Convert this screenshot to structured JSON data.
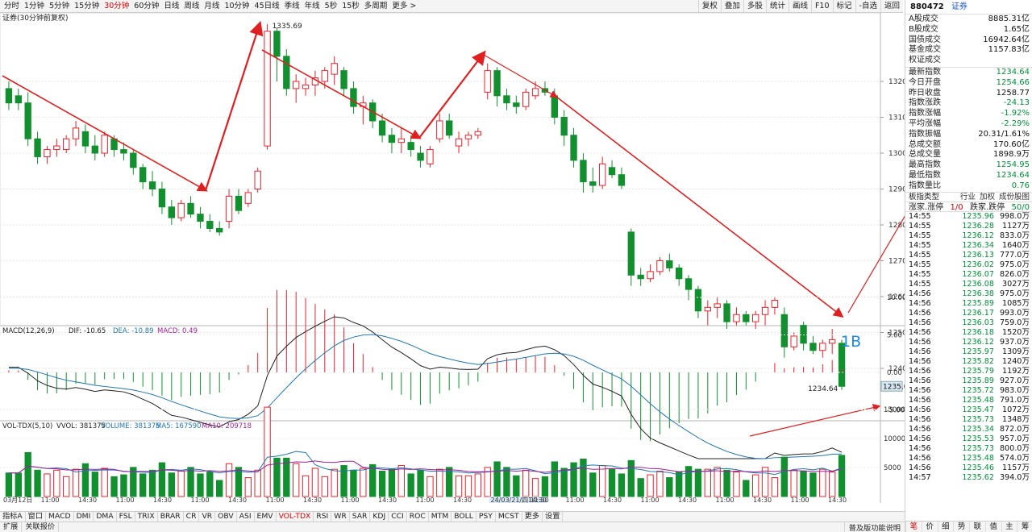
{
  "toolbar": {
    "periods": [
      "分时",
      "1分钟",
      "5分钟",
      "15分钟",
      "30分钟",
      "60分钟",
      "日线",
      "周线",
      "月线",
      "10分钟",
      "45日线",
      "季线",
      "年线",
      "5秒",
      "15秒",
      "多周期",
      "更多 >"
    ],
    "active_period": "30分钟",
    "actions": [
      "复权",
      "叠加",
      "多股",
      "统计",
      "画线",
      "F10",
      "标记",
      "-自选",
      "返回"
    ]
  },
  "main_chart": {
    "title": "证券(30分钟前复权)",
    "high_label": "1335.69",
    "low_label": "1234.64",
    "current_price_tag": "1235.0",
    "y_ticks": [
      "1320",
      "1310",
      "1300",
      "1290",
      "1280",
      "1270",
      "1260",
      "1250",
      "1240"
    ],
    "annotation": "1B",
    "colors": {
      "up": "#e8232b",
      "down": "#12902f",
      "arrow": "#e02020",
      "label": "#1a8cd8"
    }
  },
  "chart_data": {
    "type": "candlestick",
    "title": "证券(30分钟前复权)",
    "y_ticks": [
      1240,
      1250,
      1260,
      1270,
      1280,
      1290,
      1300,
      1310,
      1320
    ],
    "ohlc": [
      [
        1318,
        1320,
        1312,
        1314
      ],
      [
        1316,
        1318,
        1312,
        1314
      ],
      [
        1314,
        1317,
        1302,
        1304
      ],
      [
        1304,
        1306,
        1297,
        1299
      ],
      [
        1299,
        1302,
        1297,
        1301
      ],
      [
        1301,
        1304,
        1299,
        1302
      ],
      [
        1301,
        1305,
        1300,
        1304
      ],
      [
        1304,
        1309,
        1302,
        1307
      ],
      [
        1306,
        1308,
        1300,
        1302
      ],
      [
        1302,
        1305,
        1298,
        1300
      ],
      [
        1300,
        1306,
        1299,
        1305
      ],
      [
        1304,
        1305,
        1299,
        1301
      ],
      [
        1301,
        1303,
        1298,
        1300
      ],
      [
        1300,
        1301,
        1294,
        1296
      ],
      [
        1296,
        1297,
        1290,
        1292
      ],
      [
        1292,
        1295,
        1288,
        1290
      ],
      [
        1290,
        1292,
        1283,
        1285
      ],
      [
        1285,
        1287,
        1280,
        1282
      ],
      [
        1282,
        1287,
        1281,
        1286
      ],
      [
        1286,
        1288,
        1282,
        1283
      ],
      [
        1283,
        1285,
        1279,
        1281
      ],
      [
        1281,
        1283,
        1278,
        1279
      ],
      [
        1279,
        1281,
        1277,
        1278
      ],
      [
        1281,
        1290,
        1279,
        1288
      ],
      [
        1288,
        1290,
        1283,
        1284
      ],
      [
        1286,
        1290,
        1285,
        1289
      ],
      [
        1290,
        1296,
        1289,
        1295
      ],
      [
        1302,
        1336,
        1301,
        1334
      ],
      [
        1334,
        1335,
        1320,
        1327
      ],
      [
        1327,
        1329,
        1316,
        1318
      ],
      [
        1318,
        1322,
        1314,
        1320
      ],
      [
        1318,
        1321,
        1316,
        1319
      ],
      [
        1319,
        1323,
        1316,
        1321
      ],
      [
        1320,
        1324,
        1318,
        1323
      ],
      [
        1322,
        1327,
        1319,
        1325
      ],
      [
        1323,
        1324,
        1316,
        1318
      ],
      [
        1318,
        1320,
        1311,
        1313
      ],
      [
        1313,
        1316,
        1308,
        1314
      ],
      [
        1314,
        1315,
        1307,
        1309
      ],
      [
        1309,
        1311,
        1303,
        1305
      ],
      [
        1305,
        1307,
        1300,
        1303
      ],
      [
        1303,
        1307,
        1300,
        1304
      ],
      [
        1303,
        1305,
        1299,
        1301
      ],
      [
        1300,
        1302,
        1296,
        1298
      ],
      [
        1297,
        1302,
        1296,
        1301
      ],
      [
        1304,
        1311,
        1303,
        1309
      ],
      [
        1309,
        1311,
        1304,
        1305
      ],
      [
        1302,
        1306,
        1300,
        1304
      ],
      [
        1304,
        1306,
        1302,
        1305
      ],
      [
        1305,
        1307,
        1304,
        1306
      ],
      [
        1317,
        1325,
        1315,
        1323
      ],
      [
        1323,
        1324,
        1313,
        1316
      ],
      [
        1316,
        1318,
        1312,
        1314
      ],
      [
        1314,
        1316,
        1311,
        1313
      ],
      [
        1313,
        1318,
        1312,
        1317
      ],
      [
        1316,
        1320,
        1315,
        1318
      ],
      [
        1318,
        1320,
        1316,
        1317
      ],
      [
        1316,
        1318,
        1308,
        1310
      ],
      [
        1310,
        1312,
        1302,
        1305
      ],
      [
        1305,
        1307,
        1296,
        1298
      ],
      [
        1298,
        1300,
        1289,
        1292
      ],
      [
        1292,
        1296,
        1289,
        1291
      ],
      [
        1291,
        1299,
        1290,
        1297
      ],
      [
        1296,
        1298,
        1293,
        1294
      ],
      [
        1294,
        1296,
        1290,
        1291
      ],
      [
        1278,
        1279,
        1263,
        1266
      ],
      [
        1266,
        1268,
        1263,
        1265
      ],
      [
        1265,
        1269,
        1264,
        1267
      ],
      [
        1267,
        1271,
        1266,
        1270
      ],
      [
        1270,
        1272,
        1267,
        1268
      ],
      [
        1268,
        1269,
        1263,
        1265
      ],
      [
        1265,
        1266,
        1259,
        1262
      ],
      [
        1262,
        1263,
        1254,
        1256
      ],
      [
        1256,
        1259,
        1252,
        1257
      ],
      [
        1257,
        1260,
        1254,
        1258
      ],
      [
        1258,
        1259,
        1251,
        1253
      ],
      [
        1253,
        1257,
        1252,
        1255
      ],
      [
        1255,
        1256,
        1252,
        1253
      ],
      [
        1253,
        1256,
        1251,
        1255
      ],
      [
        1255,
        1259,
        1252,
        1257
      ],
      [
        1257,
        1260,
        1255,
        1259
      ],
      [
        1255,
        1257,
        1243,
        1246
      ],
      [
        1246,
        1250,
        1245,
        1249
      ],
      [
        1252,
        1253,
        1245,
        1247
      ],
      [
        1247,
        1249,
        1244,
        1245
      ],
      [
        1245,
        1248,
        1243,
        1247
      ],
      [
        1247,
        1251,
        1244,
        1248
      ],
      [
        1247,
        1248,
        1234,
        1235
      ]
    ],
    "macd": {
      "name": "MACD(12,26,9)",
      "dif": -10.65,
      "dea": -10.89,
      "macd": 0.49,
      "y_ticks": [
        10.0,
        5.0,
        0.0,
        -5.0
      ]
    },
    "vol": {
      "name": "VOL-TDX(5,10)",
      "vvol": 381375,
      "volume": 381375,
      "ma5": 167590,
      "ma10": 209718,
      "y_ticks": [
        15000,
        10000,
        5000
      ]
    },
    "x_labels": [
      "03月12日",
      "11:00",
      "14:30",
      "11:00",
      "14:30",
      "11:00",
      "14:30",
      "11:00",
      "14:30",
      "11:00",
      "14:30",
      "11:00",
      "14:30",
      "24/03/21/四 11:30",
      "14:30",
      "11:00",
      "14:30",
      "11:00",
      "14:30",
      "11:00",
      "14:30",
      "11:00",
      "14:30"
    ]
  },
  "macd_header": {
    "name": "MACD(12,26,9)",
    "dif_label": "DIF: -10.65",
    "dea_label": "DEA: -10.89",
    "macd_label": "MACD: 0.49"
  },
  "vol_header": {
    "name": "VOL-TDX(5,10)",
    "vvol_label": "VVOL: 381375",
    "volume_label": "VOLUME: 381375",
    "ma5_label": "MA5: 167590",
    "ma10_label": "MA10: 209718"
  },
  "right_panel": {
    "code": "880472",
    "name": "证券",
    "summary": [
      {
        "k": "A股成交",
        "v": "8885.31亿",
        "g": false
      },
      {
        "k": "B股成交",
        "v": "1.65亿",
        "g": false
      },
      {
        "k": "国债成交",
        "v": "16942.64亿",
        "g": false
      },
      {
        "k": "基金成交",
        "v": "1157.83亿",
        "g": false
      },
      {
        "k": "权证成交",
        "v": "",
        "g": false
      }
    ],
    "stats": [
      {
        "k": "最新指数",
        "v": "1234.64",
        "g": true
      },
      {
        "k": "今日开盘",
        "v": "1254.66",
        "g": true
      },
      {
        "k": "昨日收盘",
        "v": "1258.77",
        "g": false
      },
      {
        "k": "指数涨跌",
        "v": "-24.13",
        "g": true
      },
      {
        "k": "指数涨幅",
        "v": "-1.92%",
        "g": true
      },
      {
        "k": "平均涨幅",
        "v": "-2.29%",
        "g": true
      },
      {
        "k": "指数振幅",
        "v": "20.31/1.61%",
        "g": false
      },
      {
        "k": "总成交额",
        "v": "170.60亿",
        "g": false
      },
      {
        "k": "总成交量",
        "v": "1898.9万",
        "g": false
      },
      {
        "k": "最高指数",
        "v": "1254.95",
        "g": true
      },
      {
        "k": "最低指数",
        "v": "1234.64",
        "g": true
      },
      {
        "k": "指数量比",
        "v": "0.76",
        "g": true
      }
    ],
    "index_type": {
      "label": "板指类型",
      "tabs": [
        "行业",
        "加权",
        "成份股图"
      ]
    },
    "up_down": {
      "up_label": "涨家.涨停",
      "up_value": "1/0",
      "down_label": "跌家.跌停",
      "down_value": "50/0"
    },
    "ticks": [
      [
        "14:55",
        "1235.96",
        "998.0万"
      ],
      [
        "14:55",
        "1236.28",
        "1127万"
      ],
      [
        "14:55",
        "1236.12",
        "833.0万"
      ],
      [
        "14:55",
        "1236.34",
        "1640万"
      ],
      [
        "14:55",
        "1236.13",
        "777.0万"
      ],
      [
        "14:55",
        "1236.02",
        "975.0万"
      ],
      [
        "14:55",
        "1236.07",
        "826.0万"
      ],
      [
        "14:55",
        "1236.08",
        "3027万"
      ],
      [
        "14:56",
        "1236.38",
        "975.0万"
      ],
      [
        "14:56",
        "1235.89",
        "1085万"
      ],
      [
        "14:56",
        "1236.17",
        "993.0万"
      ],
      [
        "14:56",
        "1236.03",
        "759.0万"
      ],
      [
        "14:56",
        "1236.18",
        "1520万"
      ],
      [
        "14:56",
        "1236.12",
        "937.0万"
      ],
      [
        "14:56",
        "1235.97",
        "1309万"
      ],
      [
        "14:56",
        "1235.82",
        "1240万"
      ],
      [
        "14:56",
        "1235.79",
        "1192万"
      ],
      [
        "14:56",
        "1235.89",
        "927.0万"
      ],
      [
        "14:56",
        "1235.72",
        "983.0万"
      ],
      [
        "14:56",
        "1235.48",
        "791.0万"
      ],
      [
        "14:56",
        "1235.47",
        "1072万"
      ],
      [
        "14:56",
        "1235.73",
        "1348万"
      ],
      [
        "14:56",
        "1235.34",
        "872.0万"
      ],
      [
        "14:56",
        "1235.53",
        "957.0万"
      ],
      [
        "14:56",
        "1235.73",
        "800.0万"
      ],
      [
        "14:56",
        "1235.48",
        "574.0万"
      ],
      [
        "14:56",
        "1235.46",
        "1157万"
      ],
      [
        "14:57",
        "1235.62",
        "394.0万"
      ]
    ],
    "bottom_tabs": [
      "笔",
      "价",
      "细",
      "势",
      "联",
      "值",
      "主",
      "筹"
    ]
  },
  "indicator_bar": [
    "指标A",
    "窗口",
    "MACD",
    "DMI",
    "DMA",
    "FSL",
    "TRIX",
    "BRAR",
    "CR",
    "VR",
    "OBV",
    "ASI",
    "EMV",
    "VOL-TDX",
    "RSI",
    "WR",
    "SAR",
    "KDJ",
    "CCI",
    "ROC",
    "MTM",
    "BOLL",
    "PSY",
    "MCST",
    "更多",
    "设置"
  ],
  "indicator_active": "VOL-TDX",
  "status_bar": {
    "left": [
      "扩展",
      "关联报价"
    ],
    "right": [
      "普及版功能说明"
    ]
  }
}
